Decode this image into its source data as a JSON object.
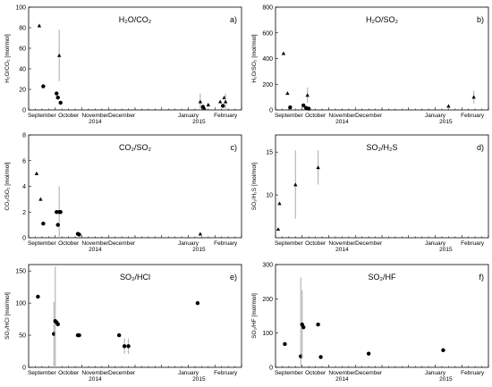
{
  "chart_data": [
    {
      "type": "scatter",
      "title": "H₂O/CO₂",
      "panel_label": "a)",
      "ylabel": "H₂O/CO₂ [mol/mol]",
      "ylim": [
        0,
        100
      ],
      "yticks": [
        0,
        20,
        40,
        60,
        80,
        100
      ],
      "series": [
        {
          "marker": "triangle",
          "points": [
            {
              "x": 0.4,
              "y": 82
            },
            {
              "x": 1.15,
              "y": 53,
              "err": 25
            },
            {
              "x": 6.45,
              "y": 8,
              "err": 8
            },
            {
              "x": 6.6,
              "y": 2
            },
            {
              "x": 6.75,
              "y": 5
            },
            {
              "x": 7.2,
              "y": 8
            },
            {
              "x": 7.35,
              "y": 12
            },
            {
              "x": 7.4,
              "y": 8,
              "err": 8
            }
          ]
        },
        {
          "marker": "circle",
          "points": [
            {
              "x": 0.55,
              "y": 23
            },
            {
              "x": 1.05,
              "y": 16
            },
            {
              "x": 1.1,
              "y": 12
            },
            {
              "x": 1.2,
              "y": 7
            },
            {
              "x": 6.55,
              "y": 3
            },
            {
              "x": 7.3,
              "y": 4
            }
          ]
        }
      ]
    },
    {
      "type": "scatter",
      "title": "H₂O/SO₂",
      "panel_label": "b)",
      "ylabel": "H₂O/SO₂ [mol/mol]",
      "ylim": [
        0,
        800
      ],
      "yticks": [
        0,
        200,
        400,
        600,
        800
      ],
      "series": [
        {
          "marker": "triangle",
          "points": [
            {
              "x": 0.3,
              "y": 440
            },
            {
              "x": 0.45,
              "y": 130
            },
            {
              "x": 1.2,
              "y": 115,
              "err": 60
            },
            {
              "x": 6.5,
              "y": 30
            },
            {
              "x": 7.45,
              "y": 100,
              "err": 50
            }
          ]
        },
        {
          "marker": "circle",
          "points": [
            {
              "x": 0.55,
              "y": 20
            },
            {
              "x": 1.05,
              "y": 35
            },
            {
              "x": 1.15,
              "y": 15
            },
            {
              "x": 1.25,
              "y": 10
            }
          ]
        }
      ]
    },
    {
      "type": "scatter",
      "title": "CO₂/SO₂",
      "panel_label": "c)",
      "ylabel": "CO₂/SO₂ [mol/mol]",
      "ylim": [
        0,
        8
      ],
      "yticks": [
        0,
        2,
        4,
        6,
        8
      ],
      "series": [
        {
          "marker": "triangle",
          "points": [
            {
              "x": 0.3,
              "y": 5.0
            },
            {
              "x": 0.45,
              "y": 3.0
            },
            {
              "x": 6.45,
              "y": 0.3
            }
          ]
        },
        {
          "marker": "circle",
          "points": [
            {
              "x": 0.55,
              "y": 1.1
            },
            {
              "x": 1.05,
              "y": 2.0
            },
            {
              "x": 1.15,
              "y": 2.0,
              "err": 2.0
            },
            {
              "x": 1.2,
              "y": 2.0
            },
            {
              "x": 1.1,
              "y": 1.0
            },
            {
              "x": 1.85,
              "y": 0.3
            },
            {
              "x": 1.9,
              "y": 0.25
            }
          ]
        }
      ]
    },
    {
      "type": "scatter",
      "title": "SO₂/H₂S",
      "panel_label": "d)",
      "ylabel": "SO₂/H₂S [mol/mol]",
      "ylim": [
        5,
        17
      ],
      "yticks": [
        10,
        15
      ],
      "series": [
        {
          "marker": "triangle",
          "points": [
            {
              "x": 0.1,
              "y": 6.0
            },
            {
              "x": 0.15,
              "y": 9.0
            },
            {
              "x": 0.75,
              "y": 11.2,
              "err": 4
            },
            {
              "x": 1.6,
              "y": 13.2,
              "err": 2
            }
          ]
        }
      ]
    },
    {
      "type": "scatter",
      "title": "SO₂/HCl",
      "panel_label": "e)",
      "ylabel": "SO₂/HCl [mol/mol]",
      "ylim": [
        0,
        160
      ],
      "yticks": [
        0,
        50,
        100,
        150
      ],
      "series": [
        {
          "marker": "circle",
          "points": [
            {
              "x": 0.35,
              "y": 110
            },
            {
              "x": 0.95,
              "y": 52,
              "err": 50
            },
            {
              "x": 1.0,
              "y": 72,
              "err": 85
            },
            {
              "x": 1.05,
              "y": 70
            },
            {
              "x": 1.1,
              "y": 67
            },
            {
              "x": 1.85,
              "y": 50
            },
            {
              "x": 1.9,
              "y": 50
            },
            {
              "x": 3.4,
              "y": 50
            },
            {
              "x": 3.6,
              "y": 33,
              "err": 12
            },
            {
              "x": 3.75,
              "y": 33,
              "err": 12
            },
            {
              "x": 6.35,
              "y": 100
            }
          ]
        }
      ]
    },
    {
      "type": "scatter",
      "title": "SO₂/HF",
      "panel_label": "f)",
      "ylabel": "SO₂/HF [mol/mol]",
      "ylim": [
        0,
        300
      ],
      "yticks": [
        0,
        100,
        200,
        300
      ],
      "series": [
        {
          "marker": "circle",
          "points": [
            {
              "x": 0.35,
              "y": 68
            },
            {
              "x": 0.95,
              "y": 32,
              "err": 230
            },
            {
              "x": 1.0,
              "y": 125,
              "err": 100
            },
            {
              "x": 1.05,
              "y": 117
            },
            {
              "x": 1.6,
              "y": 125
            },
            {
              "x": 1.7,
              "y": 30
            },
            {
              "x": 3.5,
              "y": 40
            },
            {
              "x": 6.3,
              "y": 50
            }
          ]
        }
      ]
    }
  ],
  "x_axis": {
    "month_labels": [
      "September",
      "October",
      "November",
      "December",
      "January",
      "February"
    ],
    "year_labels": [
      "2014",
      "2015"
    ],
    "xlim": [
      0,
      8
    ]
  },
  "colors": {
    "marker": "#000000",
    "error_bar": "#b8b8b8",
    "axis": "#000000"
  }
}
